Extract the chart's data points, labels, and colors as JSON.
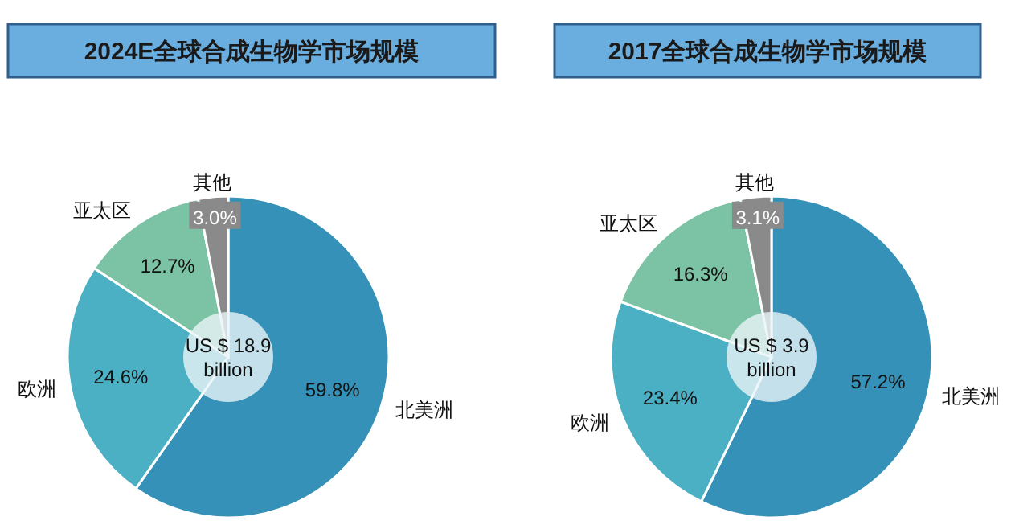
{
  "chart_data": [
    {
      "type": "donut",
      "title": "2024E全球合成生物学市场规模",
      "categories": [
        "北美洲",
        "欧洲",
        "亚太区",
        "其他"
      ],
      "values": [
        59.8,
        24.6,
        12.7,
        3.0
      ],
      "value_labels": [
        "59.8%",
        "24.6%",
        "12.7%",
        "3.0%"
      ],
      "colors": [
        "#3591b8",
        "#4bb0c4",
        "#7cc2a4",
        "#8a8a8a"
      ],
      "annotations": [
        "US $ 18.9 billion"
      ]
    },
    {
      "type": "donut",
      "title": "2017全球合成生物学市场规模",
      "categories": [
        "北美洲",
        "欧洲",
        "亚太区",
        "其他"
      ],
      "values": [
        57.2,
        23.4,
        16.3,
        3.1
      ],
      "value_labels": [
        "57.2%",
        "23.4%",
        "16.3%",
        "3.1%"
      ],
      "colors": [
        "#3591b8",
        "#4bb0c4",
        "#7cc2a4",
        "#8a8a8a"
      ],
      "annotations": [
        "US $ 3.9 billion"
      ]
    }
  ]
}
